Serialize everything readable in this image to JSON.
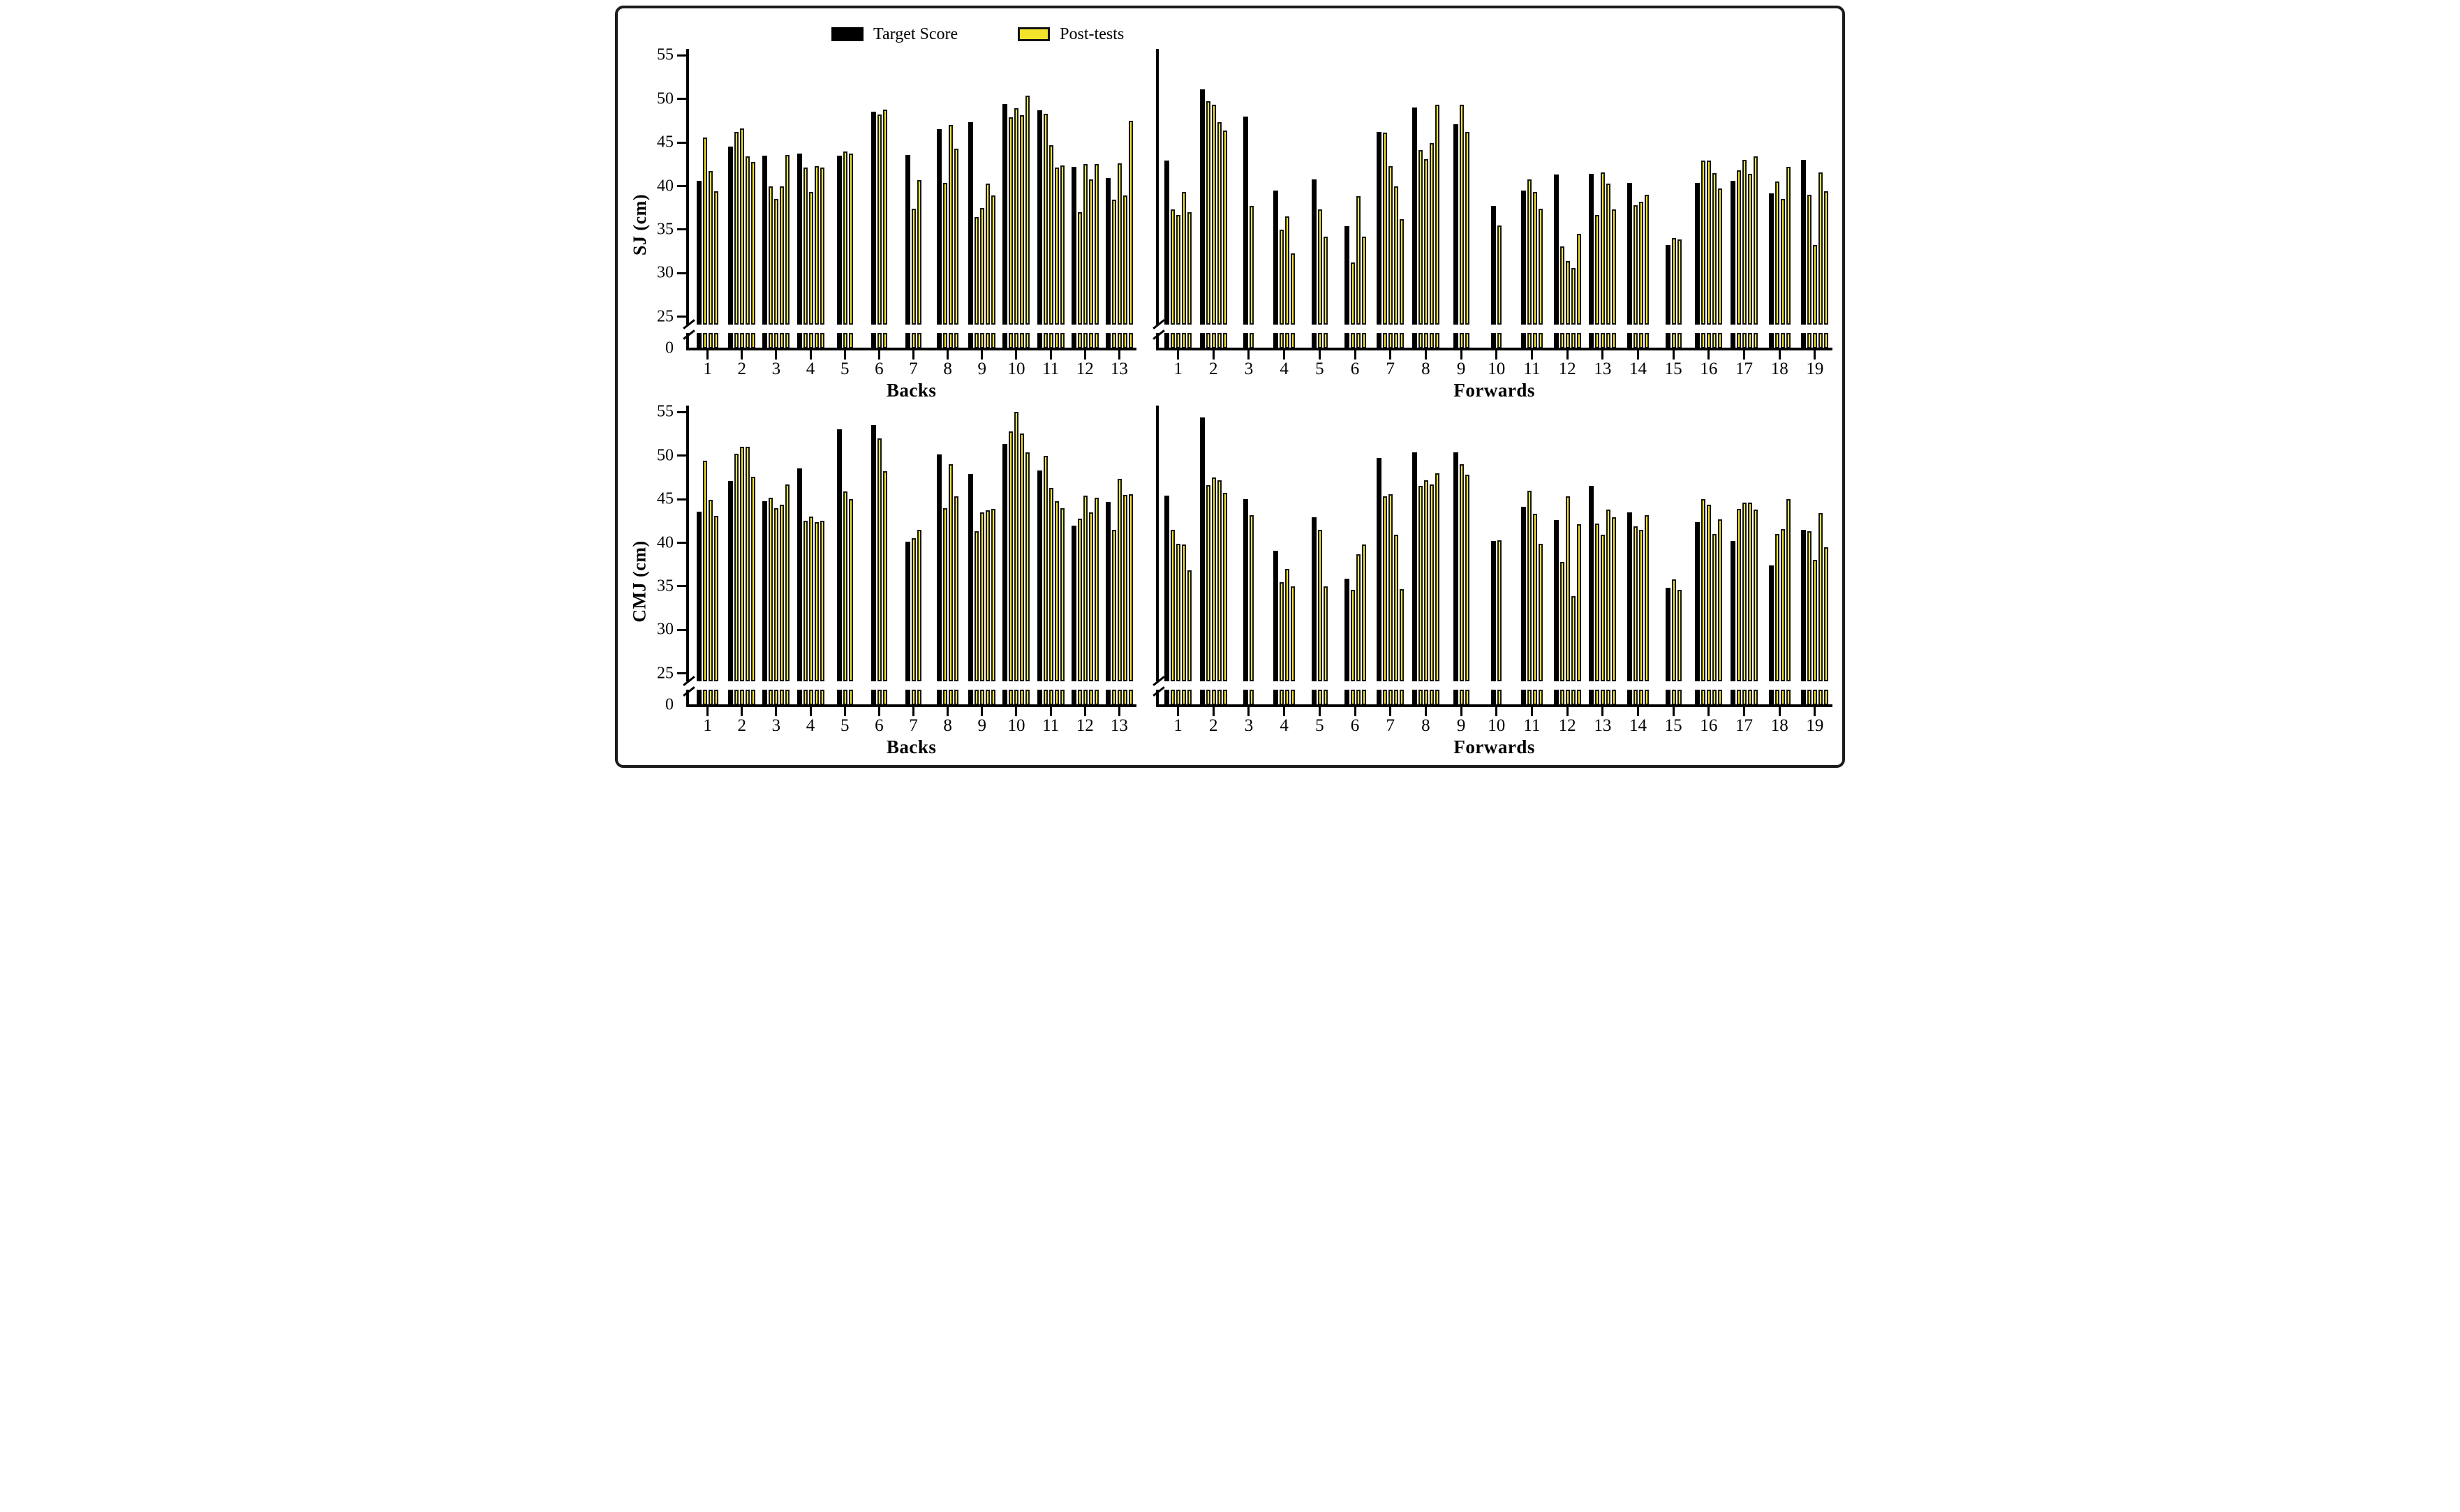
{
  "legend": {
    "items": [
      {
        "label": "Target Score",
        "color": "#000000"
      },
      {
        "label": "Post-tests",
        "color": "#f3e32a"
      }
    ]
  },
  "colors": {
    "target_bar": "#000000",
    "post_fill": "#f3e32a",
    "post_border": "#161616",
    "axis": "#000000",
    "background": "#ffffff",
    "frame_border": "#1c1c1c"
  },
  "y_axis": {
    "ticks": [
      55,
      50,
      45,
      40,
      35,
      30,
      25
    ],
    "base_tick": 0,
    "axis_break": true
  },
  "chart_data": [
    {
      "type": "bar",
      "position": "top-left",
      "ylabel": "SJ (cm)",
      "xlabel": "Backs",
      "ylim": [
        0,
        55
      ],
      "axis_break": true,
      "show_y_tick_labels": true,
      "y_ticks": [
        55,
        50,
        45,
        40,
        35,
        30,
        25
      ],
      "series_names": [
        "Target Score",
        "Post-tests"
      ],
      "players": [
        {
          "x": 1,
          "target": 40.6,
          "posts": [
            45.6,
            41.7,
            39.4
          ]
        },
        {
          "x": 2,
          "target": 44.5,
          "posts": [
            46.2,
            46.6,
            43.4,
            42.8
          ]
        },
        {
          "x": 3,
          "target": 43.5,
          "posts": [
            40.0,
            38.5,
            40.0,
            43.6
          ]
        },
        {
          "x": 4,
          "target": 43.7,
          "posts": [
            42.1,
            39.3,
            42.3,
            42.1
          ]
        },
        {
          "x": 5,
          "target": 43.5,
          "posts": [
            44.0,
            43.7
          ]
        },
        {
          "x": 6,
          "target": 48.5,
          "posts": [
            48.2,
            48.8
          ]
        },
        {
          "x": 7,
          "target": 43.6,
          "posts": [
            37.4,
            40.7
          ]
        },
        {
          "x": 8,
          "target": 46.5,
          "posts": [
            40.4,
            47.0,
            44.3
          ]
        },
        {
          "x": 9,
          "target": 47.3,
          "posts": [
            36.4,
            37.5,
            40.3,
            38.9
          ]
        },
        {
          "x": 10,
          "target": 49.4,
          "posts": [
            47.9,
            48.9,
            48.1,
            50.4
          ]
        },
        {
          "x": 11,
          "target": 48.7,
          "posts": [
            48.3,
            44.7,
            42.1,
            42.4
          ]
        },
        {
          "x": 12,
          "target": 42.2,
          "posts": [
            37.0,
            42.5,
            40.8,
            42.5
          ]
        },
        {
          "x": 13,
          "target": 40.9,
          "posts": [
            38.4,
            42.6,
            38.9,
            47.5
          ]
        }
      ]
    },
    {
      "type": "bar",
      "position": "top-right",
      "ylabel": "",
      "xlabel": "Forwards",
      "ylim": [
        0,
        55
      ],
      "axis_break": true,
      "show_y_tick_labels": false,
      "y_ticks": [
        55,
        50,
        45,
        40,
        35,
        30,
        25
      ],
      "series_names": [
        "Target Score",
        "Post-tests"
      ],
      "players": [
        {
          "x": 1,
          "target": 42.9,
          "posts": [
            37.3,
            36.7,
            39.3,
            37.0
          ]
        },
        {
          "x": 2,
          "target": 51.1,
          "posts": [
            49.7,
            49.3,
            47.3,
            46.4
          ]
        },
        {
          "x": 3,
          "target": 48.0,
          "posts": [
            37.7
          ]
        },
        {
          "x": 4,
          "target": 39.5,
          "posts": [
            35.0,
            36.5,
            32.3
          ]
        },
        {
          "x": 5,
          "target": 40.8,
          "posts": [
            37.3,
            34.2
          ]
        },
        {
          "x": 6,
          "target": 35.4,
          "posts": [
            31.2,
            38.8,
            34.2
          ]
        },
        {
          "x": 7,
          "target": 46.2,
          "posts": [
            46.1,
            42.3,
            40.0,
            36.2
          ]
        },
        {
          "x": 8,
          "target": 49.0,
          "posts": [
            44.1,
            43.1,
            44.9,
            49.3
          ]
        },
        {
          "x": 9,
          "target": 47.1,
          "posts": [
            49.3,
            46.2
          ]
        },
        {
          "x": 10,
          "target": 37.7,
          "posts": [
            35.5
          ]
        },
        {
          "x": 11,
          "target": 39.5,
          "posts": [
            40.8,
            39.3,
            37.4
          ]
        },
        {
          "x": 12,
          "target": 41.3,
          "posts": [
            33.1,
            31.4,
            30.6,
            34.5
          ]
        },
        {
          "x": 13,
          "target": 41.4,
          "posts": [
            36.7,
            41.6,
            40.3,
            37.3
          ]
        },
        {
          "x": 14,
          "target": 40.4,
          "posts": [
            37.8,
            38.2,
            39.0
          ]
        },
        {
          "x": 15,
          "target": 33.2,
          "posts": [
            34.0,
            33.9
          ]
        },
        {
          "x": 16,
          "target": 40.4,
          "posts": [
            42.9,
            42.9,
            41.5,
            39.7
          ]
        },
        {
          "x": 17,
          "target": 40.6,
          "posts": [
            41.8,
            43.0,
            41.4,
            43.4
          ]
        },
        {
          "x": 18,
          "target": 39.2,
          "posts": [
            40.5,
            38.5,
            42.2
          ]
        },
        {
          "x": 19,
          "target": 43.0,
          "posts": [
            39.0,
            33.2,
            41.6,
            39.4
          ]
        }
      ]
    },
    {
      "type": "bar",
      "position": "bottom-left",
      "ylabel": "CMJ (cm)",
      "xlabel": "Backs",
      "ylim": [
        0,
        55
      ],
      "axis_break": true,
      "show_y_tick_labels": true,
      "y_ticks": [
        55,
        50,
        45,
        40,
        35,
        30,
        25
      ],
      "series_names": [
        "Target Score",
        "Post-tests"
      ],
      "players": [
        {
          "x": 1,
          "target": 43.6,
          "posts": [
            49.4,
            44.9,
            43.1
          ]
        },
        {
          "x": 2,
          "target": 47.1,
          "posts": [
            50.2,
            51.0,
            51.0,
            47.6
          ]
        },
        {
          "x": 3,
          "target": 44.8,
          "posts": [
            45.2,
            44.0,
            44.4,
            46.7
          ]
        },
        {
          "x": 4,
          "target": 48.5,
          "posts": [
            42.5,
            43.0,
            42.4,
            42.5
          ]
        },
        {
          "x": 5,
          "target": 53.0,
          "posts": [
            45.9,
            45.0
          ]
        },
        {
          "x": 6,
          "target": 53.5,
          "posts": [
            52.0,
            48.2
          ]
        },
        {
          "x": 7,
          "target": 40.1,
          "posts": [
            40.5,
            41.5
          ]
        },
        {
          "x": 8,
          "target": 50.1,
          "posts": [
            44.0,
            49.0,
            45.3
          ]
        },
        {
          "x": 9,
          "target": 47.9,
          "posts": [
            41.3,
            43.5,
            43.7,
            43.9
          ]
        },
        {
          "x": 10,
          "target": 51.3,
          "posts": [
            52.8,
            55.0,
            52.5,
            50.4
          ]
        },
        {
          "x": 11,
          "target": 48.3,
          "posts": [
            50.0,
            46.3,
            44.8,
            44.0
          ]
        },
        {
          "x": 12,
          "target": 42.0,
          "posts": [
            42.8,
            45.4,
            43.5,
            45.2
          ]
        },
        {
          "x": 13,
          "target": 44.7,
          "posts": [
            41.5,
            47.3,
            45.5,
            45.6
          ]
        }
      ]
    },
    {
      "type": "bar",
      "position": "bottom-right",
      "ylabel": "",
      "xlabel": "Forwards",
      "ylim": [
        0,
        55
      ],
      "axis_break": true,
      "show_y_tick_labels": false,
      "y_ticks": [
        55,
        50,
        45,
        40,
        35,
        30,
        25
      ],
      "series_names": [
        "Target Score",
        "Post-tests"
      ],
      "players": [
        {
          "x": 1,
          "target": 45.4,
          "posts": [
            41.5,
            39.9,
            39.8,
            36.8
          ]
        },
        {
          "x": 2,
          "target": 54.4,
          "posts": [
            46.6,
            47.5,
            47.2,
            45.7
          ]
        },
        {
          "x": 3,
          "target": 45.0,
          "posts": [
            43.2
          ]
        },
        {
          "x": 4,
          "target": 39.1,
          "posts": [
            35.5,
            37.0,
            35.0
          ]
        },
        {
          "x": 5,
          "target": 42.9,
          "posts": [
            41.5,
            35.0
          ]
        },
        {
          "x": 6,
          "target": 35.9,
          "posts": [
            34.6,
            38.7,
            39.8
          ]
        },
        {
          "x": 7,
          "target": 49.7,
          "posts": [
            45.3,
            45.6,
            40.9,
            34.7
          ]
        },
        {
          "x": 8,
          "target": 50.4,
          "posts": [
            46.5,
            47.2,
            46.7,
            48.0
          ]
        },
        {
          "x": 9,
          "target": 50.4,
          "posts": [
            49.0,
            47.8
          ]
        },
        {
          "x": 10,
          "target": 40.2,
          "posts": [
            40.3
          ]
        },
        {
          "x": 11,
          "target": 44.1,
          "posts": [
            46.0,
            43.3,
            39.9
          ]
        },
        {
          "x": 12,
          "target": 42.6,
          "posts": [
            37.8,
            45.3,
            33.9,
            42.1
          ]
        },
        {
          "x": 13,
          "target": 46.5,
          "posts": [
            42.2,
            40.9,
            43.8,
            42.9
          ]
        },
        {
          "x": 14,
          "target": 43.5,
          "posts": [
            41.9,
            41.5,
            43.2
          ]
        },
        {
          "x": 15,
          "target": 34.8,
          "posts": [
            35.8,
            34.6
          ]
        },
        {
          "x": 16,
          "target": 42.4,
          "posts": [
            45.0,
            44.4,
            41.0,
            42.7
          ]
        },
        {
          "x": 17,
          "target": 40.2,
          "posts": [
            43.9,
            44.6,
            44.6,
            43.8
          ]
        },
        {
          "x": 18,
          "target": 37.4,
          "posts": [
            41.0,
            41.6,
            45.0
          ]
        },
        {
          "x": 19,
          "target": 41.5,
          "posts": [
            41.3,
            38.0,
            43.4,
            39.5
          ]
        }
      ]
    }
  ]
}
